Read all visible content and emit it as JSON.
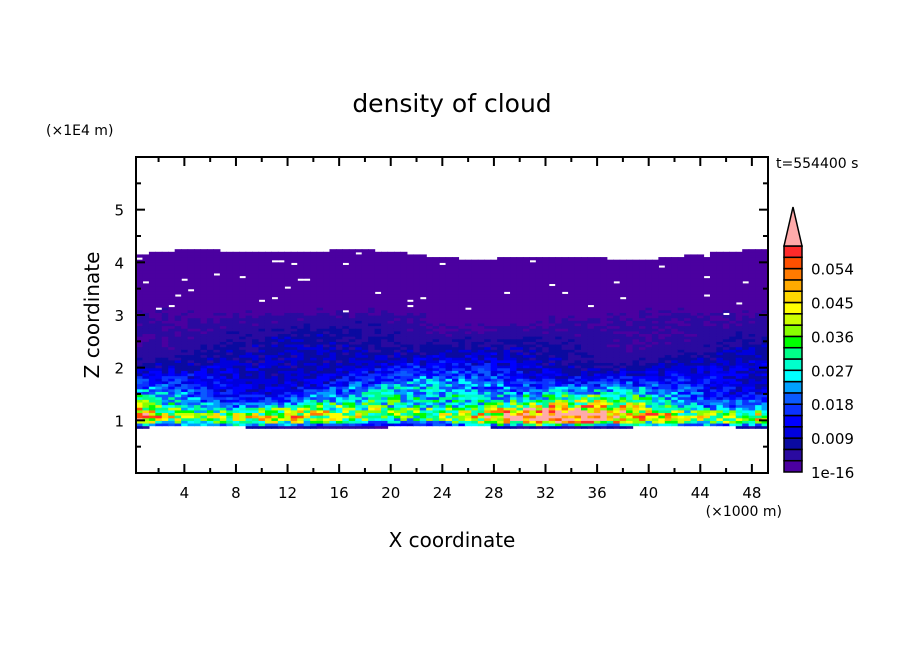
{
  "chart_data": {
    "type": "heatmap",
    "title": "density of cloud",
    "xlabel": "X coordinate",
    "ylabel": "Z coordinate",
    "x_unit": "(×1000 m)",
    "y_unit": "(×1E4 m)",
    "time_label": "t=554400 s",
    "xlim": [
      0.25,
      49.25
    ],
    "ylim": [
      0,
      6
    ],
    "x_ticks": [
      4,
      8,
      12,
      16,
      20,
      24,
      28,
      32,
      36,
      40,
      44,
      48
    ],
    "x_tick_labels": [
      "4",
      "8",
      "12",
      "16",
      "20",
      "24",
      "28",
      "32",
      "36",
      "40",
      "44",
      "48"
    ],
    "y_ticks": [
      1,
      2,
      3,
      4,
      5
    ],
    "y_tick_labels": [
      "1",
      "2",
      "3",
      "4",
      "5"
    ],
    "x_minor_step": 2,
    "y_minor_step": 0.5,
    "grid": false,
    "colorbar": {
      "levels_start": 1e-16,
      "level_step": 0.003,
      "n_levels": 20,
      "extend": "max",
      "labels": [
        "1e-16",
        "0.009",
        "0.018",
        "0.027",
        "0.036",
        "0.045",
        "0.054"
      ],
      "label_values": [
        0,
        0.009,
        0.018,
        0.027,
        0.036,
        0.045,
        0.054
      ],
      "colors": [
        "#4b00a0",
        "#2a0aa0",
        "#0a0aa0",
        "#0000dd",
        "#0000ff",
        "#0a32ff",
        "#0a5aff",
        "#00a0ff",
        "#00ffff",
        "#00ffcc",
        "#00ff88",
        "#00ff00",
        "#88ff00",
        "#ccff00",
        "#ffff00",
        "#ffd700",
        "#ffaa00",
        "#ff7a00",
        "#ff5000",
        "#ff2a2a"
      ],
      "over_color": "#ffaaaa"
    },
    "cloud_base_z": 0.87,
    "cloud_top_z": 4.15,
    "mean_profile": {
      "z": [
        0.87,
        0.95,
        1.05,
        1.15,
        1.3,
        1.5,
        1.7,
        1.9,
        2.1,
        2.4,
        2.8,
        3.2,
        3.6,
        4.15
      ],
      "density": [
        0.004,
        0.03,
        0.046,
        0.044,
        0.03,
        0.022,
        0.016,
        0.012,
        0.009,
        0.006,
        0.004,
        0.0015,
        0.001,
        0.001
      ]
    }
  }
}
